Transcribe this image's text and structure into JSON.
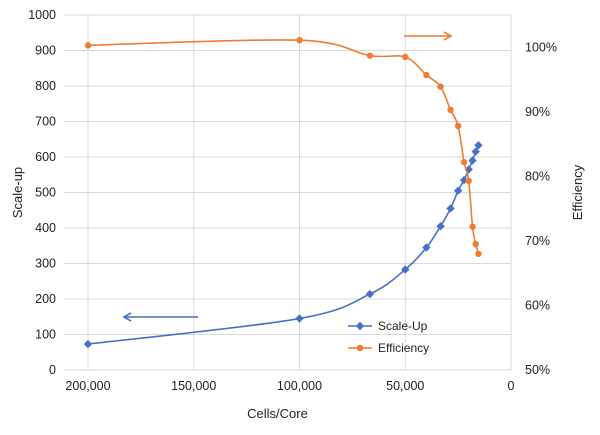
{
  "chart_data": {
    "type": "line",
    "xlabel": "Cells/Core",
    "ylabel": "Scale-up",
    "y2label": "Efficiency",
    "x_reversed": true,
    "xlim": [
      0,
      200000
    ],
    "ylim": [
      0,
      1000
    ],
    "y2lim": [
      0.5,
      1.05
    ],
    "grid": true,
    "legend_position": "bottom-center",
    "x_ticks": [
      200000,
      150000,
      100000,
      50000,
      0
    ],
    "x_tick_labels": [
      "200,000",
      "150,000",
      "100,000",
      "50,000",
      "0"
    ],
    "y_ticks": [
      0,
      100,
      200,
      300,
      400,
      500,
      600,
      700,
      800,
      900,
      1000
    ],
    "y_tick_labels": [
      "0",
      "100",
      "200",
      "300",
      "400",
      "500",
      "600",
      "700",
      "800",
      "900",
      "1000"
    ],
    "y2_ticks": [
      0.5,
      0.6,
      0.7,
      0.8,
      0.9,
      1.0
    ],
    "y2_tick_labels": [
      "50%",
      "60%",
      "70%",
      "80%",
      "90%",
      "100%"
    ],
    "series": [
      {
        "name": "Scale-Up",
        "axis": "left",
        "color": "#4472c4",
        "marker": "diamond",
        "x": [
          200000,
          100000,
          66700,
          50000,
          40000,
          33300,
          28600,
          25000,
          22200,
          20000,
          18200,
          16700,
          15400
        ],
        "y": [
          73,
          145,
          214,
          283,
          345,
          405,
          455,
          505,
          535,
          565,
          590,
          615,
          633
        ]
      },
      {
        "name": "Efficiency",
        "axis": "right",
        "color": "#ed7d31",
        "marker": "circle",
        "x": [
          200000,
          100000,
          66700,
          50000,
          40000,
          33300,
          28600,
          25000,
          22200,
          20000,
          18200,
          16700,
          15400
        ],
        "y": [
          1.003,
          1.011,
          0.987,
          0.985,
          0.957,
          0.939,
          0.903,
          0.878,
          0.822,
          0.793,
          0.722,
          0.695,
          0.68
        ]
      }
    ],
    "arrows": [
      {
        "direction": "left",
        "points_to": "left",
        "color": "#4472c4"
      },
      {
        "direction": "right",
        "points_to": "right",
        "color": "#ed7d31"
      }
    ]
  }
}
